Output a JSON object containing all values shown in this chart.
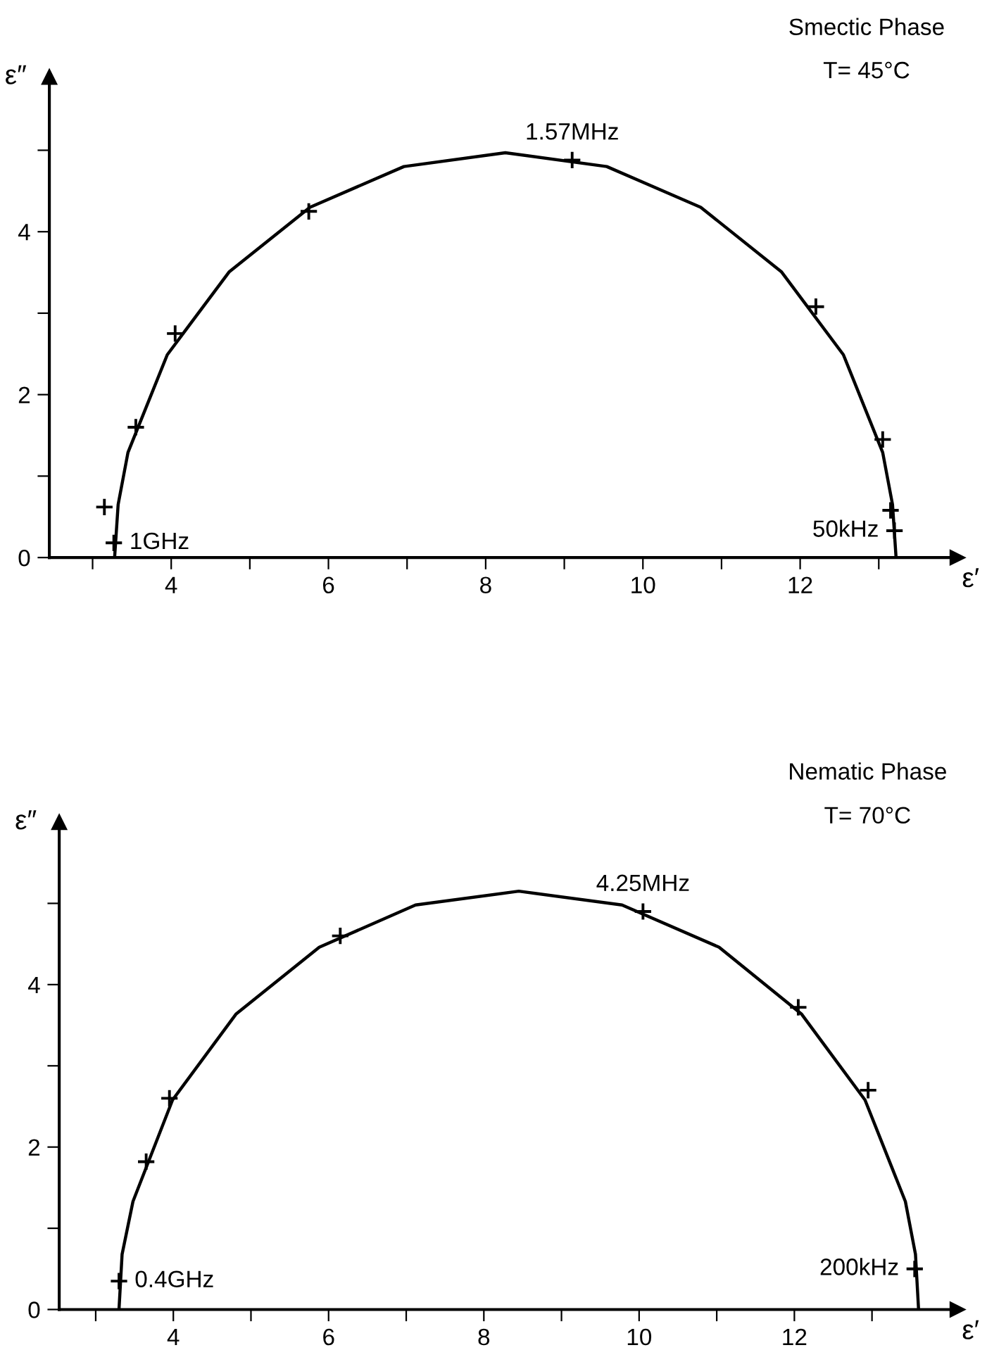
{
  "chart_data": [
    {
      "type": "scatter",
      "xlabel": "ε′",
      "ylabel": "ε″",
      "annotations": [
        "Smectic Phase",
        "T= 45°C",
        {
          "text": "1GHz",
          "x": 3.27,
          "y": 0.18
        },
        {
          "text": "50kHz",
          "x": 13.2,
          "y": 0.33
        },
        {
          "text": "1.57MHz",
          "x": 9.1,
          "y": 4.88
        }
      ],
      "series": [
        {
          "type": "scatter",
          "color": "#000000",
          "marker": "cross",
          "x": [
            3.15,
            3.27,
            3.55,
            4.05,
            5.75,
            9.1,
            12.2,
            13.05,
            13.15,
            13.2
          ],
          "values": [
            0.62,
            0.18,
            1.6,
            2.75,
            4.25,
            4.88,
            3.08,
            1.45,
            0.58,
            0.33
          ]
        },
        {
          "type": "line",
          "color": "#000000",
          "marker": "none",
          "line_style": "solid",
          "x": [
            3.28,
            3.325,
            3.45,
            3.95,
            4.74,
            5.765,
            6.96,
            8.25,
            9.54,
            10.735,
            11.76,
            12.55,
            13.05,
            13.175,
            13.22
          ],
          "values": [
            0,
            0.65,
            1.29,
            2.49,
            3.51,
            4.3,
            4.8,
            4.97,
            4.8,
            4.3,
            3.51,
            2.49,
            1.29,
            0.65,
            0
          ]
        }
      ],
      "xlim": [
        2.45,
        14.0
      ],
      "ylim": [
        0,
        5.9
      ],
      "xticks": [
        {
          "value": 3,
          "label": null
        },
        4,
        {
          "value": 5,
          "label": null
        },
        6,
        {
          "value": 7,
          "label": null
        },
        8,
        {
          "value": 9,
          "label": null
        },
        10,
        {
          "value": 11,
          "label": null
        },
        12,
        {
          "value": 13,
          "label": null
        }
      ],
      "yticks": [
        0,
        {
          "value": 1,
          "label": null
        },
        2,
        {
          "value": 3,
          "label": null
        },
        4,
        {
          "value": 5,
          "label": null
        }
      ]
    },
    {
      "type": "scatter",
      "xlabel": "ε′",
      "ylabel": "ε″",
      "annotations": [
        "Nematic Phase",
        "T= 70°C",
        {
          "text": "0.4GHz",
          "x": 3.3,
          "y": 0.35
        },
        {
          "text": "200kHz",
          "x": 13.55,
          "y": 0.5
        },
        {
          "text": "4.25MHz",
          "x": 10.05,
          "y": 4.9
        }
      ],
      "series": [
        {
          "type": "scatter",
          "color": "#000000",
          "marker": "cross",
          "x": [
            3.3,
            3.65,
            3.95,
            6.15,
            10.05,
            12.05,
            12.95,
            13.55
          ],
          "values": [
            0.35,
            1.82,
            2.6,
            4.6,
            4.9,
            3.72,
            2.7,
            0.5
          ]
        },
        {
          "type": "line",
          "color": "#000000",
          "marker": "none",
          "line_style": "solid",
          "x": [
            3.3,
            3.34,
            3.48,
            3.99,
            4.81,
            5.88,
            7.12,
            8.45,
            9.78,
            11.03,
            12.09,
            12.91,
            13.43,
            13.56,
            13.6
          ],
          "values": [
            0,
            0.68,
            1.33,
            2.58,
            3.64,
            4.46,
            4.98,
            5.15,
            4.98,
            4.46,
            3.64,
            2.58,
            1.33,
            0.68,
            0
          ]
        }
      ],
      "xlim": [
        2.53,
        14.1
      ],
      "ylim": [
        0,
        6.0
      ],
      "xticks": [
        {
          "value": 3,
          "label": null
        },
        4,
        {
          "value": 5,
          "label": null
        },
        6,
        {
          "value": 7,
          "label": null
        },
        8,
        {
          "value": 9,
          "label": null
        },
        10,
        {
          "value": 11,
          "label": null
        },
        12,
        {
          "value": 13,
          "label": null
        }
      ],
      "yticks": [
        0,
        {
          "value": 1,
          "label": null
        },
        2,
        {
          "value": 3,
          "label": null
        },
        4,
        {
          "value": 5,
          "label": null
        }
      ]
    }
  ]
}
